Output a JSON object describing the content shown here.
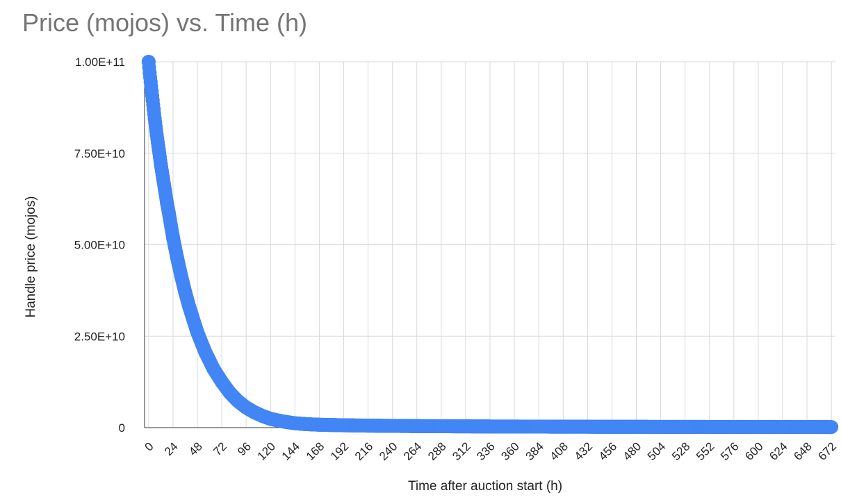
{
  "chart_data": {
    "type": "scatter",
    "title": "Price (mojos) vs. Time (h)",
    "xlabel": "Time after auction start (h)",
    "ylabel": "Handle price (mojos)",
    "xlim": [
      -4,
      676
    ],
    "ylim": [
      0,
      100000000000
    ],
    "x_ticks": [
      0,
      24,
      48,
      72,
      96,
      120,
      144,
      168,
      192,
      216,
      240,
      264,
      288,
      312,
      336,
      360,
      384,
      408,
      432,
      456,
      480,
      504,
      528,
      552,
      576,
      600,
      624,
      648,
      672
    ],
    "y_ticks": [
      {
        "value": 0,
        "label": "0"
      },
      {
        "value": 25000000000,
        "label": "2.50E+10"
      },
      {
        "value": 50000000000,
        "label": "5.00E+10"
      },
      {
        "value": 75000000000,
        "label": "7.50E+10"
      },
      {
        "value": 100000000000,
        "label": "1.00E+11"
      }
    ],
    "grid": true,
    "legend": "none",
    "series": [
      {
        "color": "#4285F4",
        "x": [
          0,
          1,
          2,
          3,
          4,
          5,
          6,
          8,
          10,
          12,
          14,
          16,
          18,
          20,
          24,
          28,
          32,
          36,
          40,
          48,
          56,
          64,
          72,
          80,
          88,
          96,
          104,
          112,
          120,
          132,
          144,
          156,
          168,
          192,
          216,
          240,
          264,
          288,
          312,
          336,
          360,
          384,
          408,
          432,
          456,
          480,
          504,
          528,
          552,
          576,
          600,
          624,
          648,
          672
        ],
        "y": [
          100000000000,
          97000000000,
          94500000000,
          92000000000,
          89500000000,
          87000000000,
          84500000000,
          80000000000,
          76000000000,
          72000000000,
          68500000000,
          65000000000,
          61500000000,
          58500000000,
          52000000000,
          46500000000,
          41500000000,
          37000000000,
          33000000000,
          26000000000,
          20500000000,
          16000000000,
          12500000000,
          9500000000,
          7200000000,
          5500000000,
          4200000000,
          3200000000,
          2400000000,
          1700000000,
          1200000000,
          950000000,
          800000000,
          650000000,
          550000000,
          480000000,
          420000000,
          380000000,
          350000000,
          320000000,
          300000000,
          280000000,
          260000000,
          250000000,
          240000000,
          230000000,
          220000000,
          210000000,
          200000000,
          195000000,
          190000000,
          185000000,
          180000000,
          175000000
        ]
      }
    ]
  }
}
